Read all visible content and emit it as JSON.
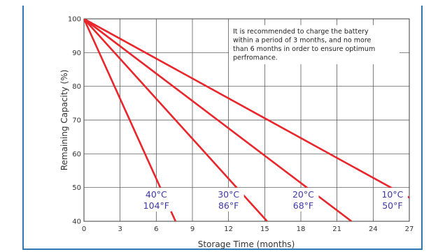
{
  "chart_data": {
    "type": "line",
    "xlabel": "Storage Time (months)",
    "ylabel": "Remaining Capacity (%)",
    "xlim": [
      0,
      27
    ],
    "ylim": [
      40,
      100
    ],
    "x_ticks": [
      "0",
      "3",
      "6",
      "9",
      "12",
      "15",
      "18",
      "21",
      "24",
      "27"
    ],
    "y_ticks": [
      "40",
      "50",
      "60",
      "70",
      "80",
      "90",
      "100"
    ],
    "grid": true,
    "note": [
      "It is recommended to charge the battery",
      "within a period of 3 months, and no more",
      "than 6 months in order to ensure optimum",
      "perfromance."
    ],
    "line_color": "#e8262b",
    "label_color": "#3d3aa8",
    "series": [
      {
        "name": "40°C 104°F",
        "celsius": "40°C",
        "fahrenheit": "104°F",
        "x": [
          0,
          7.6
        ],
        "y": [
          100,
          40
        ]
      },
      {
        "name": "30°C 86°F",
        "celsius": "30°C",
        "fahrenheit": "86°F",
        "x": [
          0,
          15.2
        ],
        "y": [
          100,
          40
        ]
      },
      {
        "name": "20°C 68°F",
        "celsius": "20°C",
        "fahrenheit": "68°F",
        "x": [
          0,
          22.2
        ],
        "y": [
          100,
          40
        ]
      },
      {
        "name": "10°C 50°F",
        "celsius": "10°C",
        "fahrenheit": "50°F",
        "x": [
          0,
          27
        ],
        "y": [
          100,
          47
        ]
      }
    ]
  }
}
